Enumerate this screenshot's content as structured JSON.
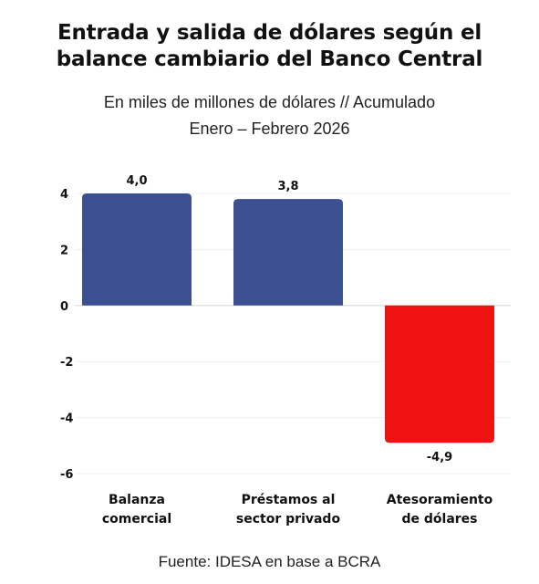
{
  "chart_data": {
    "type": "bar",
    "title_line1": "Entrada y salida de dólares según el",
    "title_line2": "balance cambiario del Banco Central",
    "subtitle_line1": "En miles de millones de dólares // Acumulado",
    "subtitle_line2": "Enero – Febrero 2026",
    "categories": [
      [
        "Balanza",
        "comercial"
      ],
      [
        "Préstamos al",
        "sector privado"
      ],
      [
        "Atesoramiento",
        "de dólares"
      ]
    ],
    "values": [
      4.0,
      3.8,
      -4.9
    ],
    "value_labels": [
      "4,0",
      "3,8",
      "-4,9"
    ],
    "bar_colors": [
      "#3b4f91",
      "#3b4f91",
      "#ee1212"
    ],
    "ylim": [
      -6,
      4
    ],
    "yticks": [
      4,
      2,
      0,
      -2,
      -4,
      -6
    ],
    "ytick_labels": [
      "4",
      "2",
      "0",
      "-2",
      "-4",
      "-6"
    ],
    "grid": true,
    "source": "Fuente: IDESA en base a BCRA"
  }
}
